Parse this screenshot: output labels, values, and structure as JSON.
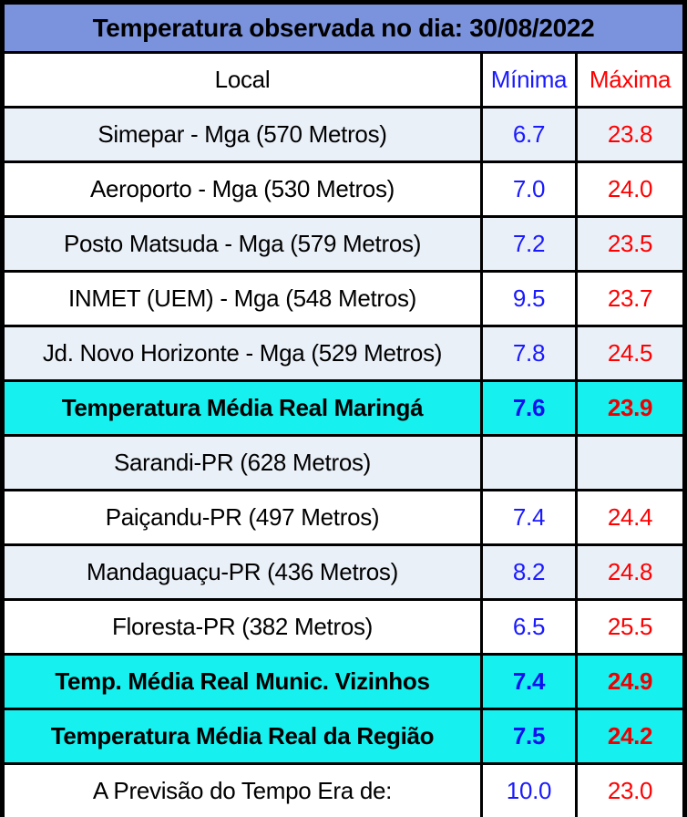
{
  "title": "Temperatura observada no dia: 30/08/2022",
  "headers": {
    "local": "Local",
    "min": "Mínima",
    "max": "Máxima"
  },
  "rows": [
    {
      "local": "Simepar - Mga  (570 Metros)",
      "min": "6.7",
      "max": "23.8"
    },
    {
      "local": "Aeroporto - Mga (530 Metros)",
      "min": "7.0",
      "max": "24.0"
    },
    {
      "local": "Posto Matsuda - Mga (579 Metros)",
      "min": "7.2",
      "max": "23.5"
    },
    {
      "local": "INMET (UEM) - Mga  (548 Metros)",
      "min": "9.5",
      "max": "23.7"
    },
    {
      "local": "Jd. Novo Horizonte - Mga (529 Metros)",
      "min": "7.8",
      "max": "24.5"
    },
    {
      "local": "Temperatura Média Real Maringá",
      "min": "7.6",
      "max": "23.9"
    },
    {
      "local": "Sarandi-PR  (628 Metros)",
      "min": "",
      "max": ""
    },
    {
      "local": "Paiçandu-PR (497 Metros)",
      "min": "7.4",
      "max": "24.4"
    },
    {
      "local": "Mandaguaçu-PR (436 Metros)",
      "min": "8.2",
      "max": "24.8"
    },
    {
      "local": "Floresta-PR (382 Metros)",
      "min": "6.5",
      "max": "25.5"
    },
    {
      "local": "Temp. Média Real Munic. Vizinhos",
      "min": "7.4",
      "max": "24.9"
    },
    {
      "local": "Temperatura Média Real da Região",
      "min": "7.5",
      "max": "24.2"
    },
    {
      "local": "A Previsão do Tempo Era de:",
      "min": "10.0",
      "max": "23.0"
    }
  ],
  "colors": {
    "title_bg": "#7b93dd",
    "stripe_bg": "#eaf0f8",
    "average_bg": "#16f0ef",
    "min_text": "#1a1aff",
    "max_text": "#ff0000"
  }
}
